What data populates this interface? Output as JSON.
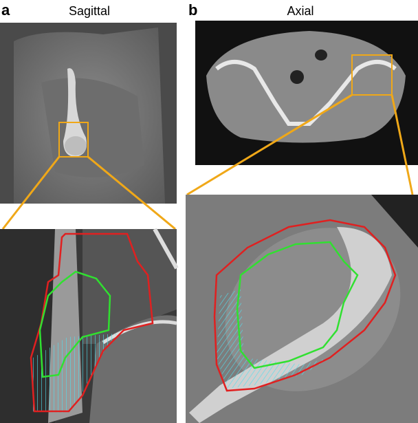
{
  "panel_a": {
    "label": "a",
    "title": "Sagittal"
  },
  "panel_b": {
    "label": "b",
    "title": "Axial"
  }
}
